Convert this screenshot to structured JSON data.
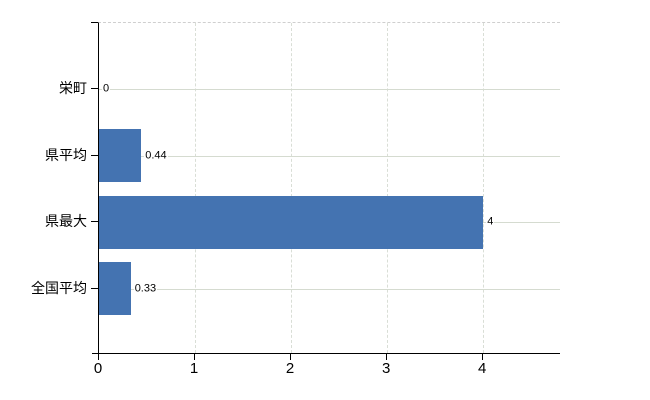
{
  "chart_data": {
    "type": "bar",
    "orientation": "horizontal",
    "title": "",
    "xlabel": "",
    "ylabel": "",
    "categories": [
      "栄町",
      "県平均",
      "県最大",
      "全国平均"
    ],
    "values": [
      0,
      0.44,
      4,
      0.33
    ],
    "value_labels": [
      "0",
      "0.44",
      "4",
      "0.33"
    ],
    "x_ticks": [
      0,
      1,
      2,
      3,
      4
    ],
    "x_tick_labels": [
      "0",
      "1",
      "2",
      "3",
      "4"
    ],
    "xlim": [
      0,
      4.81
    ],
    "grid": {
      "horizontal": "solid",
      "vertical": "dashed",
      "top_border": "dashed",
      "right_border": "none"
    },
    "legend": null,
    "colors": {
      "bar": "#4473b1",
      "gridline": "#d5dbd0",
      "axis": "#000000",
      "background": "#ffffff",
      "text": "#000000"
    }
  }
}
